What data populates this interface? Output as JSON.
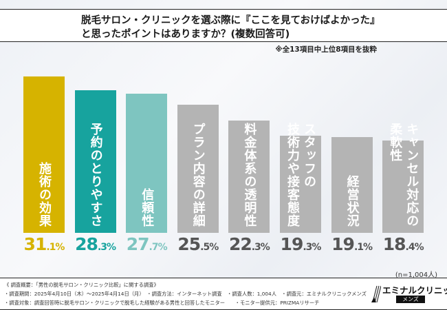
{
  "header": {
    "title_line1": "脱毛サロン・クリニックを選ぶ際に『ここを見ておけばよかった』",
    "title_line2": "と思ったポイントはありますか？(複数回答可)",
    "note": "※全13項目中上位8項目を抜粋"
  },
  "chart_data": {
    "type": "bar",
    "title": "脱毛サロン・クリニックを選ぶ際に『ここを見ておけばよかった』と思ったポイントはありますか？(複数回答可)",
    "unit": "%",
    "ylim": [
      0,
      31.1
    ],
    "grid": false,
    "categories": [
      "施術の効果",
      "予約のとりやすさ",
      "信頼性",
      "プラン内容の詳細",
      "料金体系の透明性",
      "スタッフの技術力や接客態度",
      "経営状況",
      "キャンセル対応の柔軟性"
    ],
    "label_lines": [
      [
        "施術の効果"
      ],
      [
        "予約のとりやすさ"
      ],
      [
        "信頼性"
      ],
      [
        "プラン内容の詳細"
      ],
      [
        "料金体系の透明性"
      ],
      [
        "スタッフの",
        "技術力や接客態度"
      ],
      [
        "経営状況"
      ],
      [
        "キャンセル対応の",
        "柔軟性"
      ]
    ],
    "values": [
      31.1,
      28.3,
      27.7,
      25.5,
      22.3,
      19.3,
      19.1,
      18.4
    ],
    "value_labels": [
      [
        "31",
        ".1%"
      ],
      [
        "28",
        ".3%"
      ],
      [
        "27",
        ".7%"
      ],
      [
        "25",
        ".5%"
      ],
      [
        "22",
        ".3%"
      ],
      [
        "19",
        ".3%"
      ],
      [
        "19",
        ".1%"
      ],
      [
        "18",
        ".4%"
      ]
    ],
    "colors": [
      "#d6b300",
      "#17a39e",
      "#7ec5c0",
      "#b4b4b4",
      "#b4b4b4",
      "#b4b4b4",
      "#b4b4b4",
      "#b4b4b4"
    ],
    "value_colors": [
      "#d6b300",
      "#17a39e",
      "#7ec5c0",
      "#555555",
      "#555555",
      "#555555",
      "#555555",
      "#555555"
    ],
    "sample": "(n=1,004人)"
  },
  "footer": {
    "line1": "《 調査概要：「男性の脱毛サロン・クリニック比較」に関する調査》",
    "line2": "・調査期間：2025年4月10日（木）～2025年4月14日（月）　・調査方法：インターネット調査　・調査人数：1,004人　・調査元：エミナルクリニックメンズ",
    "line3": "・調査対象：調査回答時に脱毛サロン・クリニックで脱毛した経験がある男性と回答したモニター　　・モニター提供元：PRIZMAリサーチ",
    "logo_name": "エミナルクリニック",
    "logo_sub": "メンズ"
  }
}
